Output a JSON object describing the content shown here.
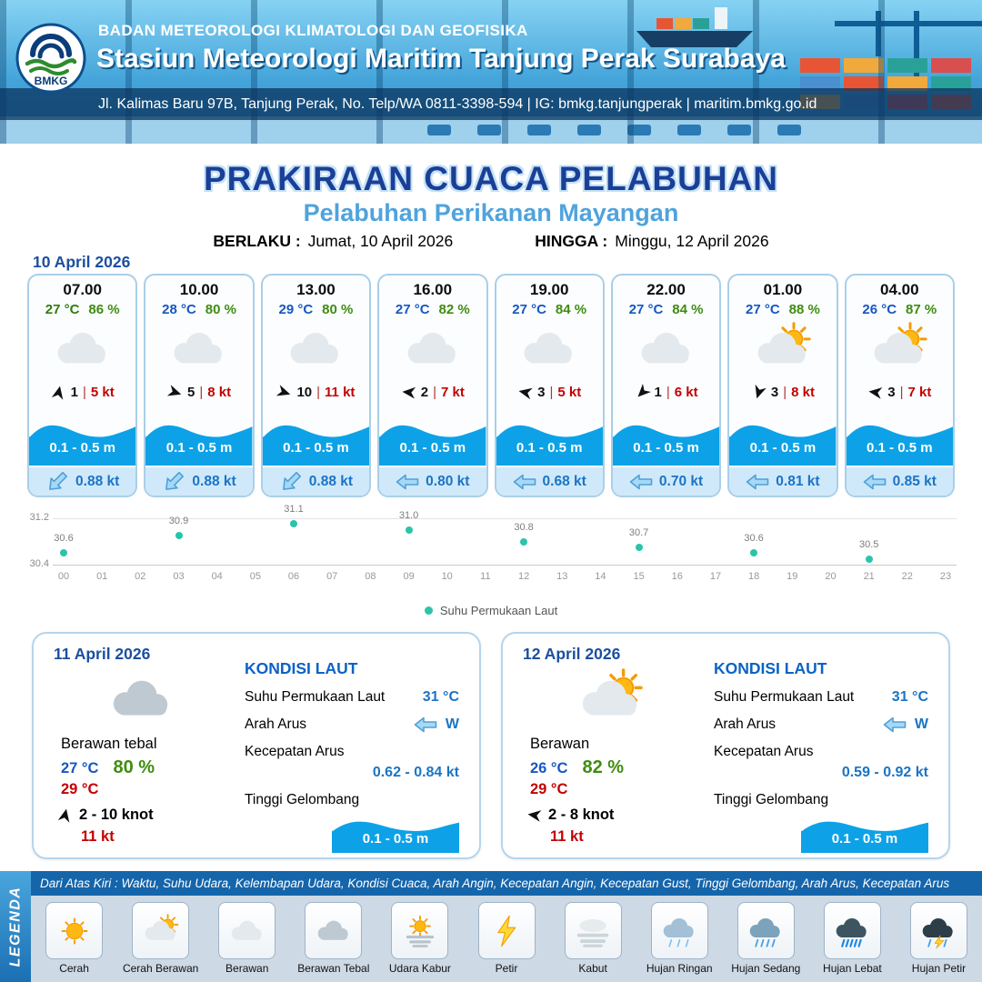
{
  "header": {
    "agency": "BADAN METEOROLOGI KLIMATOLOGI DAN GEOFISIKA",
    "station": "Stasiun Meteorologi Maritim Tanjung Perak Surabaya",
    "contact": "Jl. Kalimas Baru 97B, Tanjung Perak, No. Telp/WA 0811-3398-594 | IG: bmkg.tanjungperak | maritim.bmkg.go.id",
    "logo_text": "BMKG"
  },
  "title": {
    "main": "PRAKIRAAN CUACA PELABUHAN",
    "subtitle": "Pelabuhan Perikanan Mayangan",
    "valid_label": "BERLAKU :",
    "valid_value": "Jumat, 10 April 2026",
    "until_label": "HINGGA :",
    "until_value": "Minggu, 12 April 2026"
  },
  "forecast_date": "10 April 2026",
  "labels": {
    "wind_divider": "|"
  },
  "colors": {
    "accent_blue": "#1c4f9f",
    "subtitle_blue": "#4fa3dd",
    "temp_blue": "#1657c2",
    "humidity_green": "#3f8c10",
    "gust_red": "#c40000",
    "wave_blue": "#0da2e7",
    "sst_point_teal": "#2bc4ab"
  },
  "hourly": [
    {
      "time": "07.00",
      "temp": "27 °C",
      "temp_color": "#2f7d0c",
      "humidity": "86 %",
      "icon": "cloud",
      "wind_dir_deg": -78,
      "wind_speed": "1",
      "gust": "5 kt",
      "wave_height": "0.1 - 0.5 m",
      "current_dir_deg": -45,
      "current_speed": "0.88 kt"
    },
    {
      "time": "10.00",
      "temp": "28 °C",
      "temp_color": "#1657c2",
      "humidity": "80 %",
      "icon": "cloud",
      "wind_dir_deg": 18,
      "wind_speed": "5",
      "gust": "8 kt",
      "wave_height": "0.1 - 0.5 m",
      "current_dir_deg": -45,
      "current_speed": "0.88 kt"
    },
    {
      "time": "13.00",
      "temp": "29 °C",
      "temp_color": "#1657c2",
      "humidity": "80 %",
      "icon": "cloud",
      "wind_dir_deg": 18,
      "wind_speed": "10",
      "gust": "11 kt",
      "wave_height": "0.1 - 0.5 m",
      "current_dir_deg": -45,
      "current_speed": "0.88 kt"
    },
    {
      "time": "16.00",
      "temp": "27 °C",
      "temp_color": "#1657c2",
      "humidity": "82 %",
      "icon": "cloud",
      "wind_dir_deg": 185,
      "wind_speed": "2",
      "gust": "7 kt",
      "wave_height": "0.1 - 0.5 m",
      "current_dir_deg": 0,
      "current_speed": "0.80 kt"
    },
    {
      "time": "19.00",
      "temp": "27 °C",
      "temp_color": "#1657c2",
      "humidity": "84 %",
      "icon": "cloud",
      "wind_dir_deg": 192,
      "wind_speed": "3",
      "gust": "5 kt",
      "wave_height": "0.1 - 0.5 m",
      "current_dir_deg": 0,
      "current_speed": "0.68 kt"
    },
    {
      "time": "22.00",
      "temp": "27 °C",
      "temp_color": "#1657c2",
      "humidity": "84 %",
      "icon": "cloud",
      "wind_dir_deg": 135,
      "wind_speed": "1",
      "gust": "6 kt",
      "wave_height": "0.1 - 0.5 m",
      "current_dir_deg": 0,
      "current_speed": "0.70 kt"
    },
    {
      "time": "01.00",
      "temp": "27 °C",
      "temp_color": "#1657c2",
      "humidity": "88 %",
      "icon": "sun-cloud",
      "wind_dir_deg": 108,
      "wind_speed": "3",
      "gust": "8 kt",
      "wave_height": "0.1 - 0.5 m",
      "current_dir_deg": 0,
      "current_speed": "0.81 kt"
    },
    {
      "time": "04.00",
      "temp": "26 °C",
      "temp_color": "#1657c2",
      "humidity": "87 %",
      "icon": "sun-cloud",
      "wind_dir_deg": 188,
      "wind_speed": "3",
      "gust": "7 kt",
      "wave_height": "0.1 - 0.5 m",
      "current_dir_deg": 0,
      "current_speed": "0.85 kt"
    }
  ],
  "chart_data": {
    "type": "scatter",
    "x": [
      0,
      3,
      6,
      9,
      12,
      15,
      18,
      21
    ],
    "values": [
      30.6,
      30.9,
      31.1,
      31.0,
      30.8,
      30.7,
      30.6,
      30.5
    ],
    "x_ticks": [
      "00",
      "01",
      "02",
      "03",
      "04",
      "05",
      "06",
      "07",
      "08",
      "09",
      "10",
      "11",
      "12",
      "13",
      "14",
      "15",
      "16",
      "17",
      "18",
      "19",
      "20",
      "21",
      "22",
      "23"
    ],
    "y_ticks": [
      "31.2",
      "30.4"
    ],
    "ylim": [
      30.4,
      31.2
    ],
    "legend": "Suhu Permukaan Laut",
    "point_color": "#2bc4ab",
    "grid": true
  },
  "daily": [
    {
      "date": "11 April 2026",
      "icon": "cloud-thick",
      "condition": "Berawan tebal",
      "temp": "27 °C",
      "humidity": "80 %",
      "temp_max": "29 °C",
      "wind_dir_deg": -78,
      "wind_range": "2 - 10 knot",
      "gust": "11 kt",
      "sea": {
        "title": "KONDISI LAUT",
        "sst_label": "Suhu Permukaan Laut",
        "sst": "31 °C",
        "dir_label": "Arah Arus",
        "dir": "W",
        "dir_deg": 0,
        "speed_label": "Kecepatan Arus",
        "speed": "0.62 - 0.84 kt",
        "wave_label": "Tinggi Gelombang",
        "wave": "0.1 - 0.5 m"
      }
    },
    {
      "date": "12 April 2026",
      "icon": "sun-cloud",
      "condition": "Berawan",
      "temp": "26 °C",
      "humidity": "82 %",
      "temp_max": "29 °C",
      "wind_dir_deg": 188,
      "wind_range": "2 - 8 knot",
      "gust": "11 kt",
      "sea": {
        "title": "KONDISI LAUT",
        "sst_label": "Suhu Permukaan Laut",
        "sst": "31 °C",
        "dir_label": "Arah Arus",
        "dir": "W",
        "dir_deg": 0,
        "speed_label": "Kecepatan Arus",
        "speed": "0.59 - 0.92 kt",
        "wave_label": "Tinggi Gelombang",
        "wave": "0.1 - 0.5 m"
      }
    }
  ],
  "legend_section": {
    "side_label": "LEGENDA",
    "description": "Dari Atas Kiri : Waktu, Suhu Udara, Kelembapan Udara, Kondisi Cuaca, Arah Angin, Kecepatan Angin, Kecepatan Gust, Tinggi Gelombang, Arah Arus, Kecepatan Arus",
    "items": [
      {
        "label": "Cerah",
        "icon": "sun"
      },
      {
        "label": "Cerah Berawan",
        "icon": "sun-cloud"
      },
      {
        "label": "Berawan",
        "icon": "cloud"
      },
      {
        "label": "Berawan Tebal",
        "icon": "cloud-thick"
      },
      {
        "label": "Udara Kabur",
        "icon": "haze"
      },
      {
        "label": "Petir",
        "icon": "lightning"
      },
      {
        "label": "Kabut",
        "icon": "fog"
      },
      {
        "label": "Hujan Ringan",
        "icon": "rain-light"
      },
      {
        "label": "Hujan Sedang",
        "icon": "rain-medium"
      },
      {
        "label": "Hujan Lebat",
        "icon": "rain-heavy"
      },
      {
        "label": "Hujan Petir",
        "icon": "rain-lightning"
      }
    ]
  }
}
